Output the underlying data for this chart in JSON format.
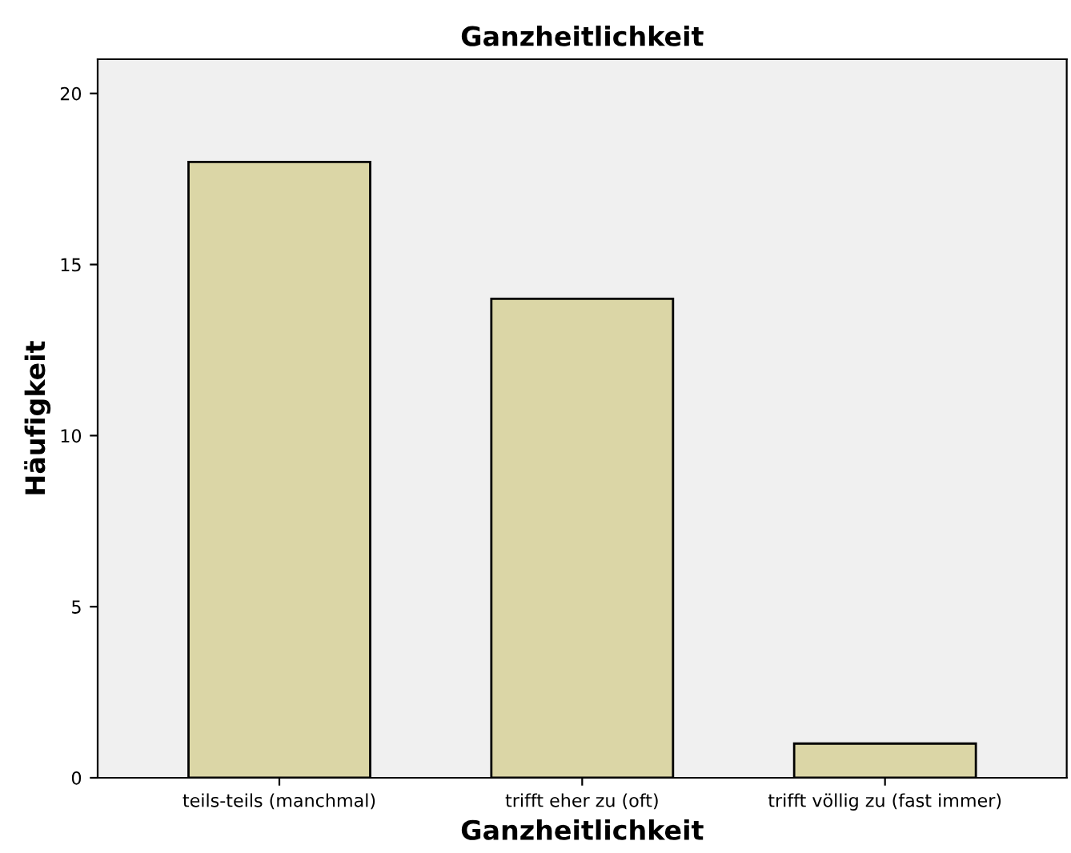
{
  "chart_data": {
    "type": "bar",
    "title": "Ganzheitlichkeit",
    "xlabel": "Ganzheitlichkeit",
    "ylabel": "Häufigkeit",
    "categories": [
      "teils-teils (manchmal)",
      "trifft eher zu (oft)",
      "trifft völlig zu (fast immer)"
    ],
    "values": [
      18,
      14,
      1
    ],
    "color": "#dbd6a6",
    "ylim": [
      0,
      21
    ],
    "yticks": [
      0,
      5,
      10,
      15,
      20
    ],
    "grid": false
  }
}
